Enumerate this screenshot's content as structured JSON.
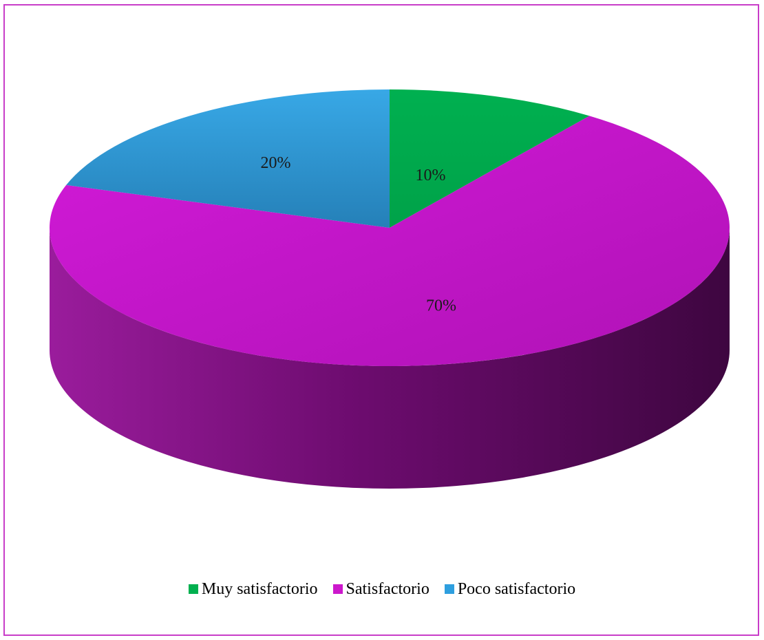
{
  "chart_data": {
    "type": "pie",
    "style": "3d",
    "categories": [
      "Muy satisfactorio",
      "Satisfactorio",
      "Poco satisfactorio"
    ],
    "values": [
      10,
      70,
      20
    ],
    "labels": [
      "10%",
      "70%",
      "20%"
    ],
    "colors": [
      "#00b04f",
      "#cc18cc",
      "#2e9fdf"
    ],
    "legend_position": "bottom",
    "frame_color": "#c83cc8"
  },
  "legend": {
    "items": [
      {
        "label": "Muy satisfactorio",
        "color": "#00b04f"
      },
      {
        "label": "Satisfactorio",
        "color": "#cc18cc"
      },
      {
        "label": "Poco satisfactorio",
        "color": "#2e9fdf"
      }
    ]
  }
}
